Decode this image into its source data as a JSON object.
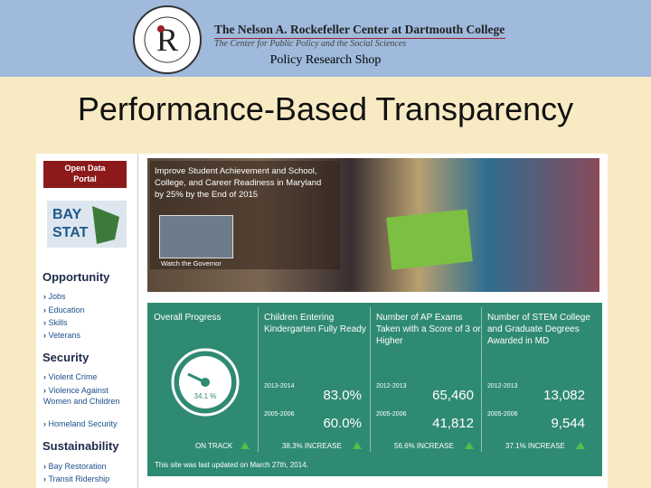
{
  "header": {
    "org": "The Nelson A. Rockefeller Center at Dartmouth College",
    "tagline": "The Center for Public Policy and the Social Sciences",
    "logo_letter": "R",
    "shop": "Policy Research Shop"
  },
  "title": "Performance-Based Transparency",
  "sidebar": {
    "portal": "Open Data Portal",
    "baystat": [
      "BAY",
      "STAT"
    ],
    "sections": [
      {
        "heading": "Opportunity",
        "links": [
          "Jobs",
          "Education",
          "Skills",
          "Veterans"
        ]
      },
      {
        "heading": "Security",
        "links": [
          "Violent Crime",
          "Violence Against Women and Children",
          "Homeland Security"
        ]
      },
      {
        "heading": "Sustainability",
        "links": [
          "Bay Restoration",
          "Transit Ridership"
        ]
      }
    ]
  },
  "banner": {
    "goal": "Improve Student Achievement and School, College, and Career Readiness in Maryland by 25% by the End of 2015",
    "video_caption": "Watch the Governor"
  },
  "progress": {
    "heading": "Overall Progress",
    "gauge": "34.1 %",
    "status": "ON TRACK"
  },
  "metrics": [
    {
      "heading": "Children Entering Kindergarten Fully Ready",
      "rows": [
        {
          "period": "2013-2014",
          "value": "83.0%"
        },
        {
          "period": "2005-2006",
          "value": "60.0%"
        }
      ],
      "change": "38.3% INCREASE"
    },
    {
      "heading": "Number of AP Exams Taken with a Score of 3 or Higher",
      "rows": [
        {
          "period": "2012-2013",
          "value": "65,460"
        },
        {
          "period": "2005-2006",
          "value": "41,812"
        }
      ],
      "change": "56.6% INCREASE"
    },
    {
      "heading": "Number of STEM College and Graduate Degrees Awarded in MD",
      "rows": [
        {
          "period": "2012-2013",
          "value": "13,082"
        },
        {
          "period": "2005-2006",
          "value": "9,544"
        }
      ],
      "change": "37.1% INCREASE"
    }
  ],
  "footer": "This site was last updated on March 27th, 2014."
}
